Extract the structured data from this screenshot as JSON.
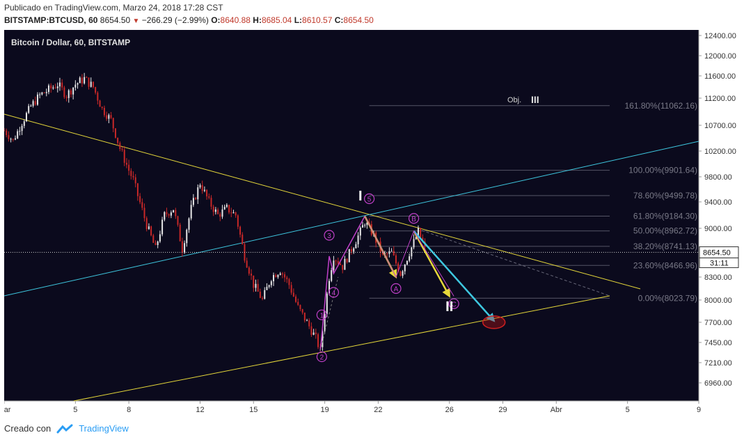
{
  "header": {
    "published": "Publicado en TradingView.com, Marzo 24, 2018 17:28 CST",
    "symbol": "BITSTAMP:BTCUSD, 60",
    "last": "8654.50",
    "change": "−266.29 (−2.99%)",
    "o_label": "O:",
    "o_value": "8640.88",
    "h_label": "H:",
    "h_value": "8685.04",
    "l_label": "L:",
    "l_value": "8610.57",
    "c_label": "C:",
    "c_value": "8654.50"
  },
  "chart_data": {
    "type": "line",
    "title": "Bitcoin / Dollar, 60, BITSTAMP",
    "ylim": [
      6700,
      12500
    ],
    "yticks": [
      6960,
      7210,
      7450,
      7700,
      8000,
      8300,
      8650,
      9000,
      9400,
      9800,
      10200,
      10700,
      11200,
      11600,
      12000,
      12400
    ],
    "ytick_labels": [
      "6960.00",
      "7210.00",
      "7450.00",
      "7700.00",
      "8000.00",
      "8300.00",
      "8650.00",
      "9000.00",
      "9400.00",
      "9800.00",
      "10200.00",
      "10700.00",
      "11200.00",
      "11600.00",
      "12000.00",
      "12400.00"
    ],
    "xlim": [
      "2018-03-01",
      "2018-04-09"
    ],
    "xticks": [
      {
        "date": "2018-03-01",
        "label": "Mar"
      },
      {
        "date": "2018-03-05",
        "label": "5"
      },
      {
        "date": "2018-03-08",
        "label": "8"
      },
      {
        "date": "2018-03-12",
        "label": "12"
      },
      {
        "date": "2018-03-15",
        "label": "15"
      },
      {
        "date": "2018-03-19",
        "label": "19"
      },
      {
        "date": "2018-03-22",
        "label": "22"
      },
      {
        "date": "2018-03-26",
        "label": "26"
      },
      {
        "date": "2018-03-29",
        "label": "29"
      },
      {
        "date": "2018-04-01",
        "label": "Abr"
      },
      {
        "date": "2018-04-05",
        "label": "5"
      },
      {
        "date": "2018-04-09",
        "label": "9"
      }
    ],
    "price_path": [
      [
        "2018-03-01 00:00",
        10600
      ],
      [
        "2018-03-01 12:00",
        10400
      ],
      [
        "2018-03-02 00:00",
        10750
      ],
      [
        "2018-03-02 12:00",
        11050
      ],
      [
        "2018-03-03 00:00",
        11250
      ],
      [
        "2018-03-03 12:00",
        11350
      ],
      [
        "2018-03-04 00:00",
        11450
      ],
      [
        "2018-03-04 12:00",
        11250
      ],
      [
        "2018-03-05 00:00",
        11450
      ],
      [
        "2018-03-05 12:00",
        11550
      ],
      [
        "2018-03-06 00:00",
        11400
      ],
      [
        "2018-03-06 12:00",
        11000
      ],
      [
        "2018-03-07 00:00",
        10800
      ],
      [
        "2018-03-07 12:00",
        10250
      ],
      [
        "2018-03-08 00:00",
        9900
      ],
      [
        "2018-03-08 06:00",
        9750
      ],
      [
        "2018-03-08 12:00",
        9500
      ],
      [
        "2018-03-09 00:00",
        9050
      ],
      [
        "2018-03-09 12:00",
        8700
      ],
      [
        "2018-03-10 00:00",
        9200
      ],
      [
        "2018-03-10 12:00",
        9300
      ],
      [
        "2018-03-11 00:00",
        8700
      ],
      [
        "2018-03-11 12:00",
        9300
      ],
      [
        "2018-03-12 00:00",
        9700
      ],
      [
        "2018-03-12 12:00",
        9400
      ],
      [
        "2018-03-13 00:00",
        9200
      ],
      [
        "2018-03-13 12:00",
        9300
      ],
      [
        "2018-03-14 00:00",
        9200
      ],
      [
        "2018-03-14 12:00",
        8600
      ],
      [
        "2018-03-15 00:00",
        8200
      ],
      [
        "2018-03-15 12:00",
        8000
      ],
      [
        "2018-03-16 00:00",
        8300
      ],
      [
        "2018-03-16 12:00",
        8400
      ],
      [
        "2018-03-17 00:00",
        8200
      ],
      [
        "2018-03-17 12:00",
        7900
      ],
      [
        "2018-03-18 00:00",
        7700
      ],
      [
        "2018-03-18 12:00",
        7500
      ],
      [
        "2018-03-18 18:00",
        7350
      ],
      [
        "2018-03-19 00:00",
        7850
      ],
      [
        "2018-03-19 06:00",
        8300
      ],
      [
        "2018-03-19 12:00",
        8600
      ],
      [
        "2018-03-20 00:00",
        8450
      ],
      [
        "2018-03-20 12:00",
        8700
      ],
      [
        "2018-03-21 00:00",
        8950
      ],
      [
        "2018-03-21 06:00",
        9100
      ],
      [
        "2018-03-21 18:00",
        8900
      ],
      [
        "2018-03-22 06:00",
        8600
      ],
      [
        "2018-03-22 18:00",
        8650
      ],
      [
        "2018-03-23 06:00",
        8350
      ],
      [
        "2018-03-23 18:00",
        8650
      ],
      [
        "2018-03-24 06:00",
        8950
      ],
      [
        "2018-03-24 17:00",
        8654.5
      ]
    ],
    "current_price_label": "8654.50",
    "countdown_label": "31:11",
    "fibonacci_levels": [
      {
        "label": "161.80%(11062.16)",
        "value": 11062.16
      },
      {
        "label": "100.00%(9901.64)",
        "value": 9901.64
      },
      {
        "label": "78.60%(9499.78)",
        "value": 9499.78
      },
      {
        "label": "61.80%(9184.30)",
        "value": 9184.3
      },
      {
        "label": "50.00%(8962.72)",
        "value": 8962.72
      },
      {
        "label": "38.20%(8741.13)",
        "value": 8741.13
      },
      {
        "label": "23.60%(8466.96)",
        "value": 8466.96
      },
      {
        "label": "0.00%(8023.79)",
        "value": 8023.79
      }
    ],
    "wave_labels": [
      {
        "text": "1",
        "date": "2018-03-18 20:00",
        "price": 7800
      },
      {
        "text": "2",
        "date": "2018-03-18 20:00",
        "price": 7280
      },
      {
        "text": "3",
        "date": "2018-03-19 06:00",
        "price": 8900
      },
      {
        "text": "4",
        "date": "2018-03-19 12:00",
        "price": 8100
      },
      {
        "text": "5",
        "date": "2018-03-21 12:00",
        "price": 9450
      },
      {
        "text": "A",
        "date": "2018-03-23 00:00",
        "price": 8150
      },
      {
        "text": "B",
        "date": "2018-03-24 00:00",
        "price": 9150
      },
      {
        "text": "C",
        "date": "2018-03-26 06:00",
        "price": 7950
      }
    ],
    "roman_labels": [
      {
        "text": "I",
        "date": "2018-03-21 00:00",
        "price": 9420
      },
      {
        "text": "II",
        "date": "2018-03-26 00:00",
        "price": 7850
      }
    ],
    "objective_label": "Obj.",
    "objective_roman": "III",
    "colors": {
      "background": "#0b0a1d",
      "trendline_yellow": "#e6d83a",
      "trendline_cyan": "#3ec7df",
      "wave_purple": "#c040c8",
      "fib_line": "#555566",
      "fib_text": "#7a7a88",
      "target_circle": "#d02020",
      "candle_up": "#e8e8e8",
      "candle_down": "#c82828"
    }
  },
  "footer": {
    "created_with": "Creado con",
    "brand": "TradingView"
  }
}
